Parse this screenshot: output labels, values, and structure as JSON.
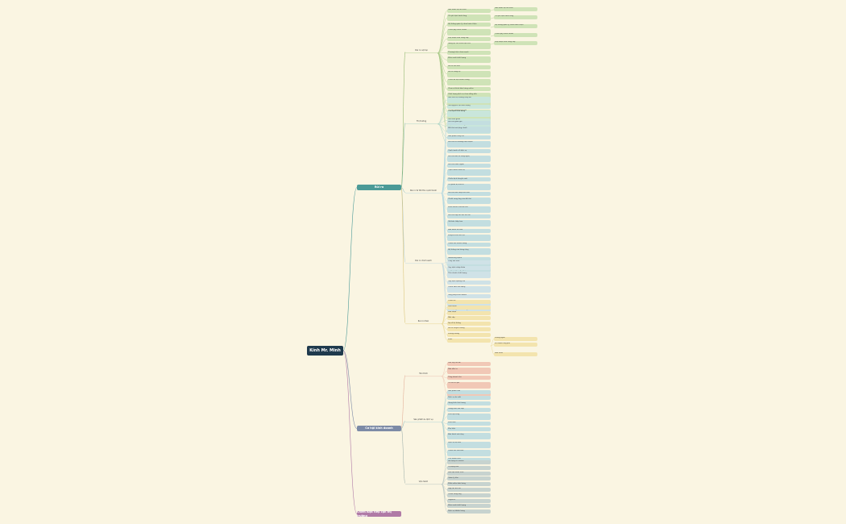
{
  "root": {
    "label": "Kính Mr. Minh"
  },
  "branches": [
    {
      "label": "Rủi ro",
      "color": "#4b9a97"
    },
    {
      "label": "Cơ hội kinh doanh",
      "color": "#7c8aa6"
    },
    {
      "label": "Chiến lược tiếp cận thị trường",
      "color": "#b07aa6"
    }
  ],
  "sub_branches": [
    "Rủi ro nội tại",
    "Thị trường",
    "Rủi ro từ đối thủ cạnh tranh",
    "Rủi ro chính sách",
    "Rủi ro khác",
    "Tài chính",
    "Sản phẩm & dịch vụ",
    "Vận hành"
  ],
  "groups": {
    "risk_internal": [
      "Mất nhân sự chủ chốt",
      "Chi phí vận hành tăng",
      "Hệ thống quản lý chưa hoàn thiện",
      "Thiếu quy trình chuẩn",
      "Phụ thuộc nhà cung cấp",
      "Năng lực tài chính hạn chế",
      "Thương hiệu chưa mạnh",
      "Kiểm soát chất lượng",
      "Rủi ro tồn kho",
      "Rủi ro công nợ",
      "Thiếu dữ liệu khách hàng",
      "Chưa có kênh bán hàng online",
      "Chất lượng dịch vụ chưa đồng đều",
      "Đội ngũ bán hàng mỏng",
      "Chi phí marketing cao",
      "Rủi ro pháp lý hợp đồng",
      "Quản lý dòng tiền",
      "Bảo mật thông tin"
    ],
    "risk_market": [
      "Nhu cầu thị trường thay đổi",
      "Giá nguyên liệu biến động",
      "Thói quen tiêu dùng",
      "Sức mua giảm",
      "Thị hiếu khách hàng",
      "Mùa vụ",
      "Khủng hoảng kinh tế",
      "Tỷ giá hối đoái"
    ],
    "risk_competitor": [
      "Đối thủ giảm giá",
      "Đối thủ mở rộng chuỗi",
      "Sản phẩm thay thế",
      "Đối thủ có thương hiệu mạnh",
      "Cạnh tranh về dịch vụ",
      "Đối thủ đầu tư công nghệ",
      "Đối thủ nước ngoài",
      "Cạnh tranh nhân sự",
      "Chiến dịch khuyến mãi",
      "Thị phần bị chia sẻ",
      "Đối thủ sao chép mô hình",
      "Chuỗi cung ứng của đối thủ",
      "Kênh online của đối thủ",
      "Đối thủ hợp tác đối tác lớn",
      "Giá bán thấp hơn",
      "Bảo hành tốt hơn",
      "Khuyến mãi liên tục",
      "Chăm sóc khách hàng",
      "Hệ thống cửa hàng rộng",
      "Marketing mạnh",
      "Đội ngũ tư vấn",
      "Ứng dụng công nghệ"
    ],
    "risk_policy": [
      "Thay đổi thuế",
      "Quy định nhập khẩu",
      "Tiêu chuẩn chất lượng",
      "Quy định quảng cáo",
      "Chính sách lao động",
      "Giấy phép kinh doanh",
      "Quy định về giá",
      "Bảo vệ người tiêu dùng"
    ],
    "risk_other": [
      "Thiên tai",
      "Dịch bệnh",
      "Hỏa hoạn",
      "Mất cắp",
      "Sự cố hệ thống",
      "Rủi ro truyền thông",
      "Khủng hoảng",
      "Khác"
    ],
    "risk_other_detail": [
      "Phòng ngừa",
      "Kế hoạch ứng phó",
      "Bảo hiểm"
    ],
    "opportunity_finance": [
      "Vốn vay ưu đãi",
      "Nhà đầu tư",
      "Tăng doanh thu",
      "Tối ưu chi phí",
      "Dòng tiền"
    ],
    "opportunity_product": [
      "Sản phẩm mới",
      "Dịch vụ đo mắt",
      "Gọng kính thời trang",
      "Tròng kính cao cấp",
      "Kính áp tròng",
      "Kính râm",
      "Phụ kiện",
      "Bảo hành mở rộng",
      "Dịch vụ tại nhà",
      "Chăm sóc sau bán",
      "Thẻ thành viên",
      "Combo sản phẩm"
    ],
    "opportunity_ops": [
      "Mở rộng chi nhánh",
      "Tự động hóa",
      "Đào tạo nhân viên",
      "Quản lý kho",
      "Phần mềm bán hàng",
      "Hợp tác đối tác",
      "Chuỗi cung ứng",
      "Logistics",
      "Kiểm soát chất lượng",
      "Dịch vụ khách hàng"
    ]
  }
}
